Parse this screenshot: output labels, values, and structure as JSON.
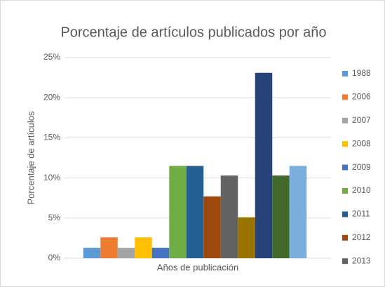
{
  "chart_data": {
    "type": "bar",
    "title": "Porcentaje de artículos publicados por año",
    "xlabel": "Años de publicación",
    "ylabel": "Porcentaje de artículos",
    "ylim": [
      0,
      25
    ],
    "yticks": [
      {
        "value": 0,
        "label": "0%"
      },
      {
        "value": 5,
        "label": "5%"
      },
      {
        "value": 10,
        "label": "10%"
      },
      {
        "value": 15,
        "label": "15%"
      },
      {
        "value": 20,
        "label": "20%"
      },
      {
        "value": 25,
        "label": "25%"
      }
    ],
    "grid": true,
    "legend": "right",
    "series": [
      {
        "name": "1988",
        "color": "#5b9bd5",
        "values": [
          1.3
        ]
      },
      {
        "name": "2006",
        "color": "#ed7d31",
        "values": [
          2.6
        ]
      },
      {
        "name": "2007",
        "color": "#a5a5a5",
        "values": [
          1.3
        ]
      },
      {
        "name": "2008",
        "color": "#ffc000",
        "values": [
          2.6
        ]
      },
      {
        "name": "2009",
        "color": "#4472c4",
        "values": [
          1.3
        ]
      },
      {
        "name": "2010",
        "color": "#70ad47",
        "values": [
          11.5
        ]
      },
      {
        "name": "2011",
        "color": "#255e91",
        "values": [
          11.5
        ]
      },
      {
        "name": "2012",
        "color": "#9e480e",
        "values": [
          7.7
        ]
      },
      {
        "name": "2013",
        "color": "#636363",
        "values": [
          10.3
        ]
      },
      {
        "name": null,
        "color": "#997300",
        "values": [
          5.1
        ]
      },
      {
        "name": null,
        "color": "#264478",
        "values": [
          23.1
        ]
      },
      {
        "name": null,
        "color": "#43682b",
        "values": [
          10.3
        ]
      },
      {
        "name": null,
        "color": "#7cafdd",
        "values": [
          11.5
        ]
      }
    ]
  }
}
